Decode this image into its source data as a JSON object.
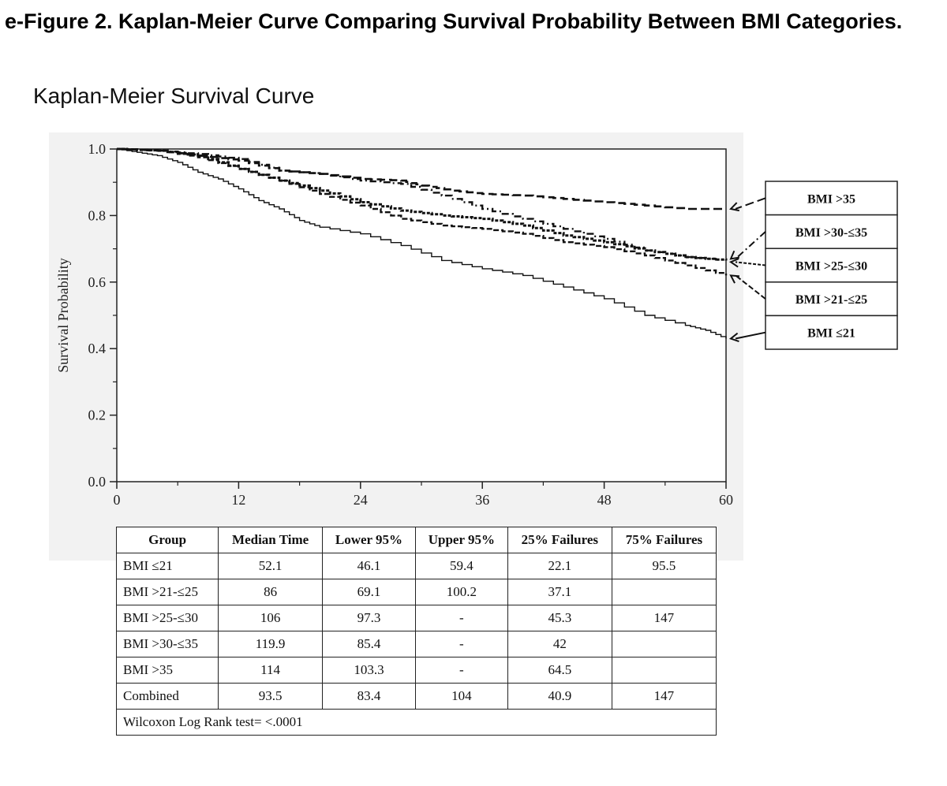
{
  "figure_title": "e-Figure 2. Kaplan-Meier Curve Comparing Survival Probability Between BMI Categories.",
  "chart_data": {
    "type": "line",
    "title": "Kaplan-Meier Survival Curve",
    "xlabel": "",
    "ylabel": "Survival Probability",
    "xlim": [
      0,
      60
    ],
    "ylim": [
      0,
      1.0
    ],
    "x_ticks": [
      "0",
      "12",
      "24",
      "36",
      "48",
      "60"
    ],
    "y_ticks": [
      "0.0",
      "0.2",
      "0.4",
      "0.6",
      "0.8",
      "1.0"
    ],
    "legend_placement": "right",
    "series": [
      {
        "name": "BMI >35",
        "line_style": "long-dash",
        "x": [
          0,
          4,
          8,
          12,
          16,
          20,
          24,
          28,
          30,
          33,
          36,
          40,
          44,
          48,
          52,
          56,
          60
        ],
        "y": [
          1.0,
          0.995,
          0.98,
          0.965,
          0.935,
          0.925,
          0.91,
          0.905,
          0.89,
          0.875,
          0.865,
          0.86,
          0.85,
          0.84,
          0.83,
          0.82,
          0.82
        ]
      },
      {
        "name": "BMI >30-≤35",
        "line_style": "dash-dot",
        "x": [
          0,
          4,
          8,
          12,
          16,
          20,
          24,
          28,
          32,
          36,
          40,
          44,
          48,
          52,
          56,
          60
        ],
        "y": [
          1.0,
          0.995,
          0.985,
          0.97,
          0.935,
          0.925,
          0.905,
          0.895,
          0.86,
          0.82,
          0.79,
          0.76,
          0.73,
          0.695,
          0.675,
          0.665
        ]
      },
      {
        "name": "BMI >25-≤30",
        "line_style": "dash-dot-dot",
        "x": [
          0,
          4,
          8,
          12,
          16,
          20,
          24,
          28,
          32,
          36,
          40,
          44,
          48,
          52,
          56,
          60
        ],
        "y": [
          1.0,
          0.995,
          0.98,
          0.94,
          0.905,
          0.875,
          0.84,
          0.815,
          0.8,
          0.79,
          0.77,
          0.74,
          0.72,
          0.695,
          0.675,
          0.665
        ]
      },
      {
        "name": "BMI >21-≤25",
        "line_style": "short-dash",
        "x": [
          0,
          4,
          8,
          12,
          16,
          20,
          24,
          28,
          32,
          36,
          40,
          44,
          48,
          52,
          56,
          60
        ],
        "y": [
          1.0,
          0.995,
          0.975,
          0.94,
          0.905,
          0.865,
          0.83,
          0.79,
          0.77,
          0.76,
          0.745,
          0.72,
          0.705,
          0.68,
          0.65,
          0.62
        ]
      },
      {
        "name": "BMI ≤21",
        "line_style": "solid",
        "x": [
          0,
          2,
          4,
          6,
          8,
          10,
          12,
          14,
          16,
          18,
          20,
          24,
          28,
          32,
          36,
          40,
          44,
          48,
          52,
          56,
          58,
          60
        ],
        "y": [
          1.0,
          0.99,
          0.98,
          0.96,
          0.93,
          0.91,
          0.88,
          0.845,
          0.82,
          0.785,
          0.765,
          0.745,
          0.71,
          0.665,
          0.64,
          0.62,
          0.585,
          0.55,
          0.5,
          0.47,
          0.455,
          0.43
        ]
      }
    ],
    "legend": [
      "BMI >35",
      "BMI >30-≤35",
      "BMI >25-≤30",
      "BMI >21-≤25",
      "BMI ≤21"
    ]
  },
  "table": {
    "headers": [
      "Group",
      "Median Time",
      "Lower 95%",
      "Upper 95%",
      "25% Failures",
      "75% Failures"
    ],
    "rows": [
      [
        "BMI ≤21",
        "52.1",
        "46.1",
        "59.4",
        "22.1",
        "95.5"
      ],
      [
        "BMI >21-≤25",
        "86",
        "69.1",
        "100.2",
        "37.1",
        ""
      ],
      [
        "BMI >25-≤30",
        "106",
        "97.3",
        "-",
        "45.3",
        "147"
      ],
      [
        "BMI >30-≤35",
        "119.9",
        "85.4",
        "-",
        "42",
        ""
      ],
      [
        "BMI >35",
        "114",
        "103.3",
        "-",
        "64.5",
        ""
      ],
      [
        "Combined",
        "93.5",
        "83.4",
        "104",
        "40.9",
        "147"
      ]
    ],
    "footnote": "Wilcoxon Log Rank test= <.0001"
  }
}
